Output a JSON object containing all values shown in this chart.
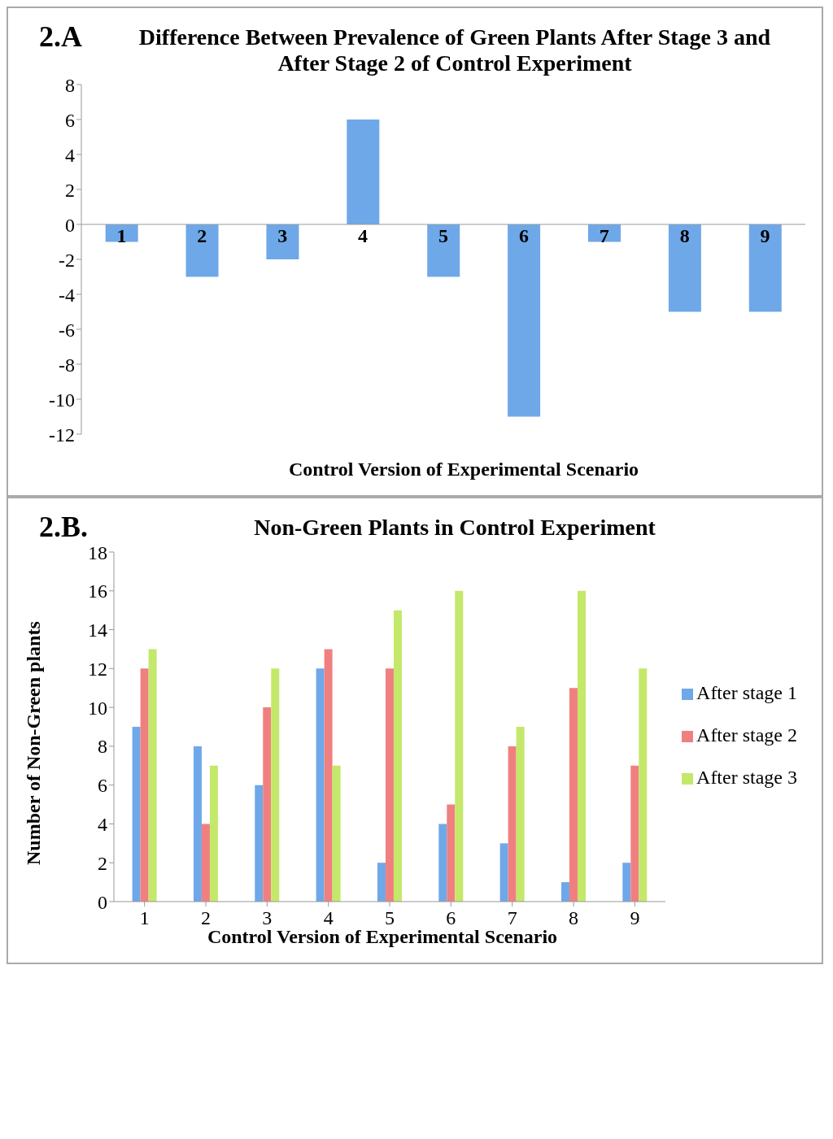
{
  "chart_data": [
    {
      "type": "bar",
      "title": "Difference Between Prevalence of Green Plants After Stage 3 and After Stage 2 of Control Experiment",
      "xlabel": "Control Version of Experimental Scenario",
      "annotations": [
        "2.A"
      ],
      "categories": [
        "1",
        "2",
        "3",
        "4",
        "5",
        "6",
        "7",
        "8",
        "9"
      ],
      "values": [
        -1,
        -3,
        -2,
        6,
        -3,
        -11,
        -1,
        -5,
        -5
      ],
      "color": "#6fa8e8",
      "ylim": [
        -12,
        8
      ],
      "yticks": [
        -12,
        -10,
        -8,
        -6,
        -4,
        -2,
        0,
        2,
        4,
        6,
        8
      ],
      "grid": false,
      "legend": false
    },
    {
      "type": "bar",
      "title": "Non-Green Plants in Control Experiment",
      "xlabel": "Control Version of Experimental Scenario",
      "ylabel": "Number of Non-Green plants",
      "annotations": [
        "2.B."
      ],
      "categories": [
        "1",
        "2",
        "3",
        "4",
        "5",
        "6",
        "7",
        "8",
        "9"
      ],
      "series": [
        {
          "name": "After stage 1",
          "color": "#6fa8e8",
          "values": [
            9,
            8,
            6,
            12,
            2,
            4,
            3,
            1,
            2
          ]
        },
        {
          "name": "After stage 2",
          "color": "#f08080",
          "values": [
            12,
            4,
            10,
            13,
            12,
            5,
            8,
            11,
            7
          ]
        },
        {
          "name": "After stage 3",
          "color": "#c4e86a",
          "values": [
            13,
            7,
            12,
            7,
            15,
            16,
            9,
            16,
            12
          ]
        }
      ],
      "ylim": [
        0,
        18
      ],
      "yticks": [
        0,
        2,
        4,
        6,
        8,
        10,
        12,
        14,
        16,
        18
      ],
      "grid": false,
      "legend": "right"
    }
  ]
}
